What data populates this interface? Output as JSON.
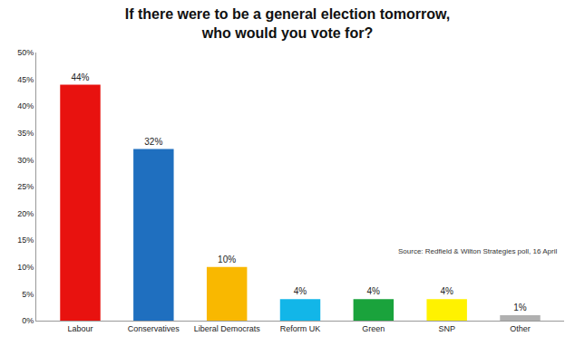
{
  "chart_data": {
    "type": "bar",
    "title": [
      "If there were to be a general election tomorrow,",
      "who would you vote for?"
    ],
    "categories": [
      "Labour",
      "Conservatives",
      "Liberal Democrats",
      "Reform UK",
      "Green",
      "SNP",
      "Other"
    ],
    "values": [
      44,
      32,
      10,
      4,
      4,
      4,
      1
    ],
    "value_labels": [
      "44%",
      "32%",
      "10%",
      "4%",
      "4%",
      "4%",
      "1%"
    ],
    "colors": [
      "#e8120f",
      "#1f6fbf",
      "#f9b800",
      "#12b6e8",
      "#1aa33c",
      "#fff200",
      "#b0b0b0"
    ],
    "data_labels": true,
    "ylim": [
      0,
      50
    ],
    "yticks": [
      {
        "value": 0,
        "label": "0%"
      },
      {
        "value": 5,
        "label": "5%"
      },
      {
        "value": 10,
        "label": "10%"
      },
      {
        "value": 15,
        "label": "15%"
      },
      {
        "value": 20,
        "label": "20%"
      },
      {
        "value": 25,
        "label": "25%"
      },
      {
        "value": 30,
        "label": "30%"
      },
      {
        "value": 35,
        "label": "35%"
      },
      {
        "value": 40,
        "label": "40%"
      },
      {
        "value": 45,
        "label": "45%"
      },
      {
        "value": 50,
        "label": "50%"
      }
    ],
    "grid": false,
    "annotations": [
      "Source: Redfield & Wilton Strategies poll, 16 April"
    ]
  }
}
